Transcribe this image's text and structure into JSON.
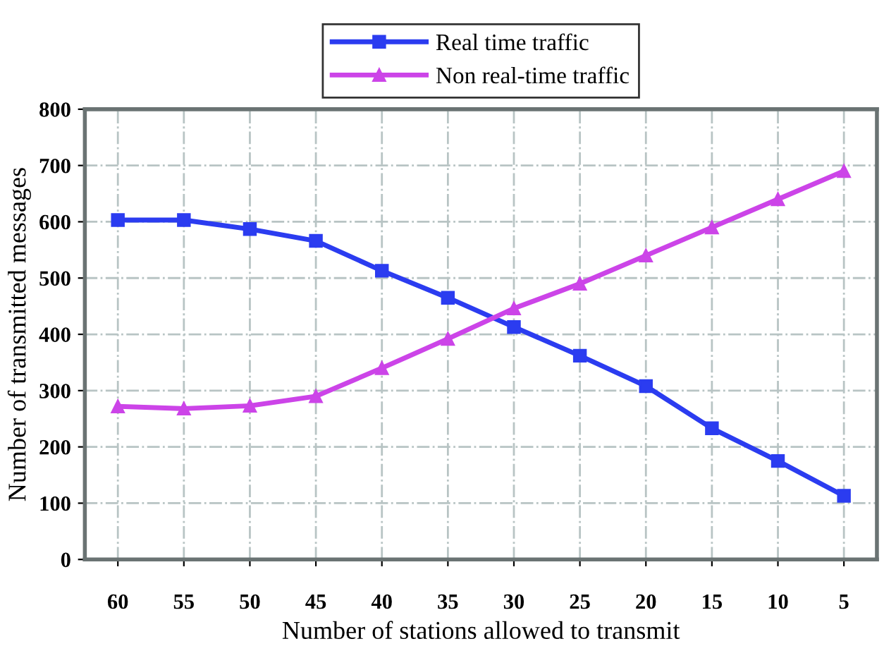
{
  "chart_data": {
    "type": "line",
    "xlabel": "Number of stations allowed to transmit",
    "ylabel": "Number of transmitted messages",
    "categories": [
      "60",
      "55",
      "50",
      "45",
      "40",
      "35",
      "30",
      "25",
      "20",
      "15",
      "10",
      "5"
    ],
    "series": [
      {
        "name": "Real time traffic",
        "color": "#2b3cf0",
        "marker": "square",
        "values": [
          603,
          603,
          587,
          566,
          513,
          465,
          413,
          362,
          308,
          233,
          175,
          113
        ]
      },
      {
        "name": "Non real-time traffic",
        "color": "#cc44e8",
        "marker": "triangle",
        "values": [
          272,
          268,
          273,
          290,
          340,
          392,
          446,
          490,
          540,
          590,
          640,
          690
        ]
      }
    ],
    "ylim": [
      0,
      800
    ],
    "yticks": [
      0,
      100,
      200,
      300,
      400,
      500,
      600,
      700,
      800
    ],
    "grid": true,
    "legend": "top",
    "line_style": "solid"
  }
}
